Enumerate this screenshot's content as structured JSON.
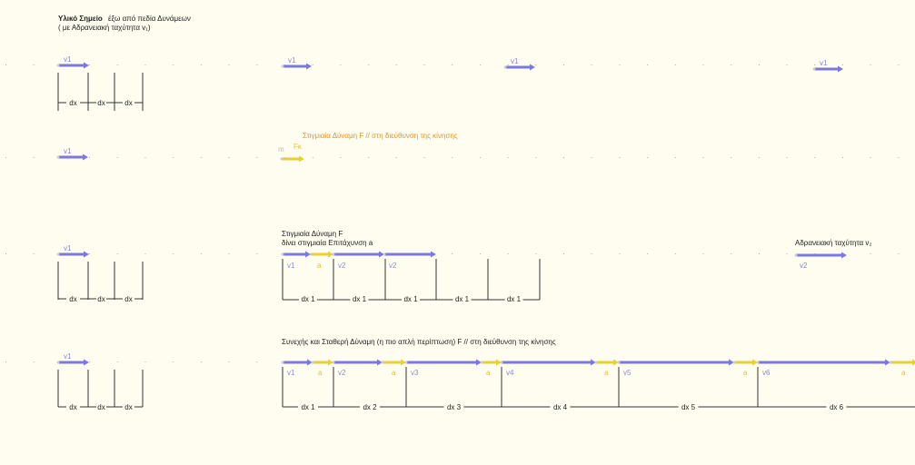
{
  "title": {
    "bold": "Υλικό Σημείο",
    "rest": "έξω από πεδία Δυνάμεων",
    "line2": "( με Αδρανειακή ταχύτητα  v₁)"
  },
  "colors": {
    "velocity": "#7b78e0",
    "acceleration": "#e8d030",
    "force_title": "#e0962a",
    "lines": "#333333"
  },
  "left_block": {
    "v_label": "v1",
    "dx_label": "dx"
  },
  "row1": {
    "v_labels": [
      "v1",
      "v1",
      "v1"
    ]
  },
  "row2": {
    "title": "Στιγμιαία Δύναμη F // στη διεύθυνση της κίνησης",
    "mass_label": "m",
    "force_label": "Fκ"
  },
  "row3": {
    "title_line1": "Στιγμιαία Δύναμη F",
    "title_line2": "δίνει στιγμιαία Επιτάχυνση a",
    "segment_labels": [
      "v1",
      "a",
      "v2",
      "v2"
    ],
    "dx_labels": [
      "dx 1",
      "dx 1",
      "dx 1",
      "dx 1",
      "dx 1"
    ],
    "right_title": "Αδρανειακή ταχύτητα  v₂",
    "right_v_label": "v2"
  },
  "row4": {
    "title": "Συνεχής και Σταθερή Δύναμη (η πιο απλή περίπτωση) F // στη διεύθυνση της κίνησης",
    "v_labels": [
      "v1",
      "v2",
      "v3",
      "v4",
      "v5",
      "v6"
    ],
    "a_label": "a",
    "dx_labels": [
      "dx 1",
      "dx 2",
      "dx 3",
      "dx 4",
      "dx 5",
      "dx 6"
    ]
  }
}
